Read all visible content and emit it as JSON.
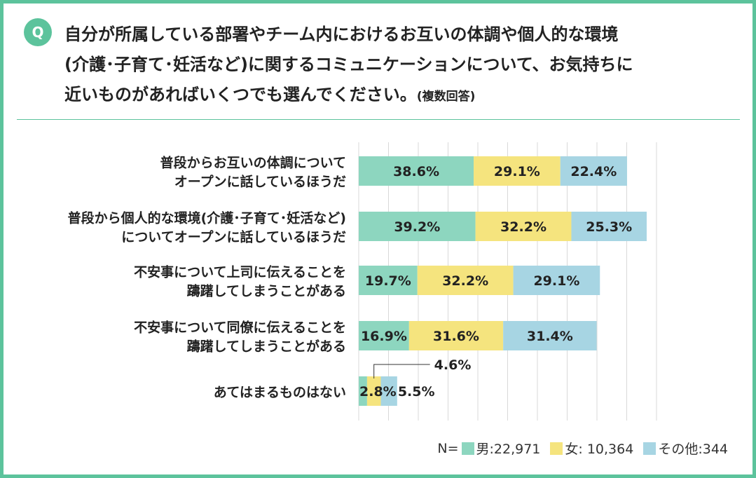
{
  "question": {
    "badge": "Q",
    "line1": "自分が所属している部署やチーム内におけるお互いの体調や個人的な環境",
    "line2": "(介護･子育て･妊活など)に関するコミュニケーションについて、お気持ちに",
    "line3": "近いものがあればいくつでも選んでください。",
    "note": "(複数回答)"
  },
  "legend": {
    "n_label": "N=",
    "male": "男:22,971",
    "female": "女: 10,364",
    "other": "その他:344"
  },
  "colors": {
    "male": "#8dd6bf",
    "female": "#f5e47e",
    "other": "#a7d5e3",
    "accent": "#5cc39c",
    "grid": "#d9d9d9"
  },
  "chart_data": {
    "type": "bar",
    "orientation": "horizontal",
    "stacked": true,
    "categories": [
      [
        "普段からお互いの体調について",
        "オープンに話しているほうだ"
      ],
      [
        "普段から個人的な環境(介護･子育て･妊活など)",
        "についてオープンに話しているほうだ"
      ],
      [
        "不安事について上司に伝えることを",
        "躊躇してしまうことがある"
      ],
      [
        "不安事について同僚に伝えることを",
        "躊躇してしまうことがある"
      ],
      [
        "あてはまるものはない"
      ]
    ],
    "series": [
      {
        "name": "男",
        "values": [
          38.6,
          39.2,
          19.7,
          16.9,
          2.8
        ],
        "labels": [
          "38.6%",
          "39.2%",
          "19.7%",
          "16.9%",
          "2.8%"
        ]
      },
      {
        "name": "女",
        "values": [
          29.1,
          32.2,
          32.2,
          31.6,
          4.6
        ],
        "labels": [
          "29.1%",
          "32.2%",
          "32.2%",
          "31.6%",
          "4.6%"
        ]
      },
      {
        "name": "その他",
        "values": [
          22.4,
          25.3,
          29.1,
          31.4,
          5.5
        ],
        "labels": [
          "22.4%",
          "25.3%",
          "29.1%",
          "31.4%",
          "5.5%"
        ]
      }
    ],
    "xlim": [
      0,
      100
    ],
    "grid": true,
    "legend_position": "bottom-right"
  }
}
